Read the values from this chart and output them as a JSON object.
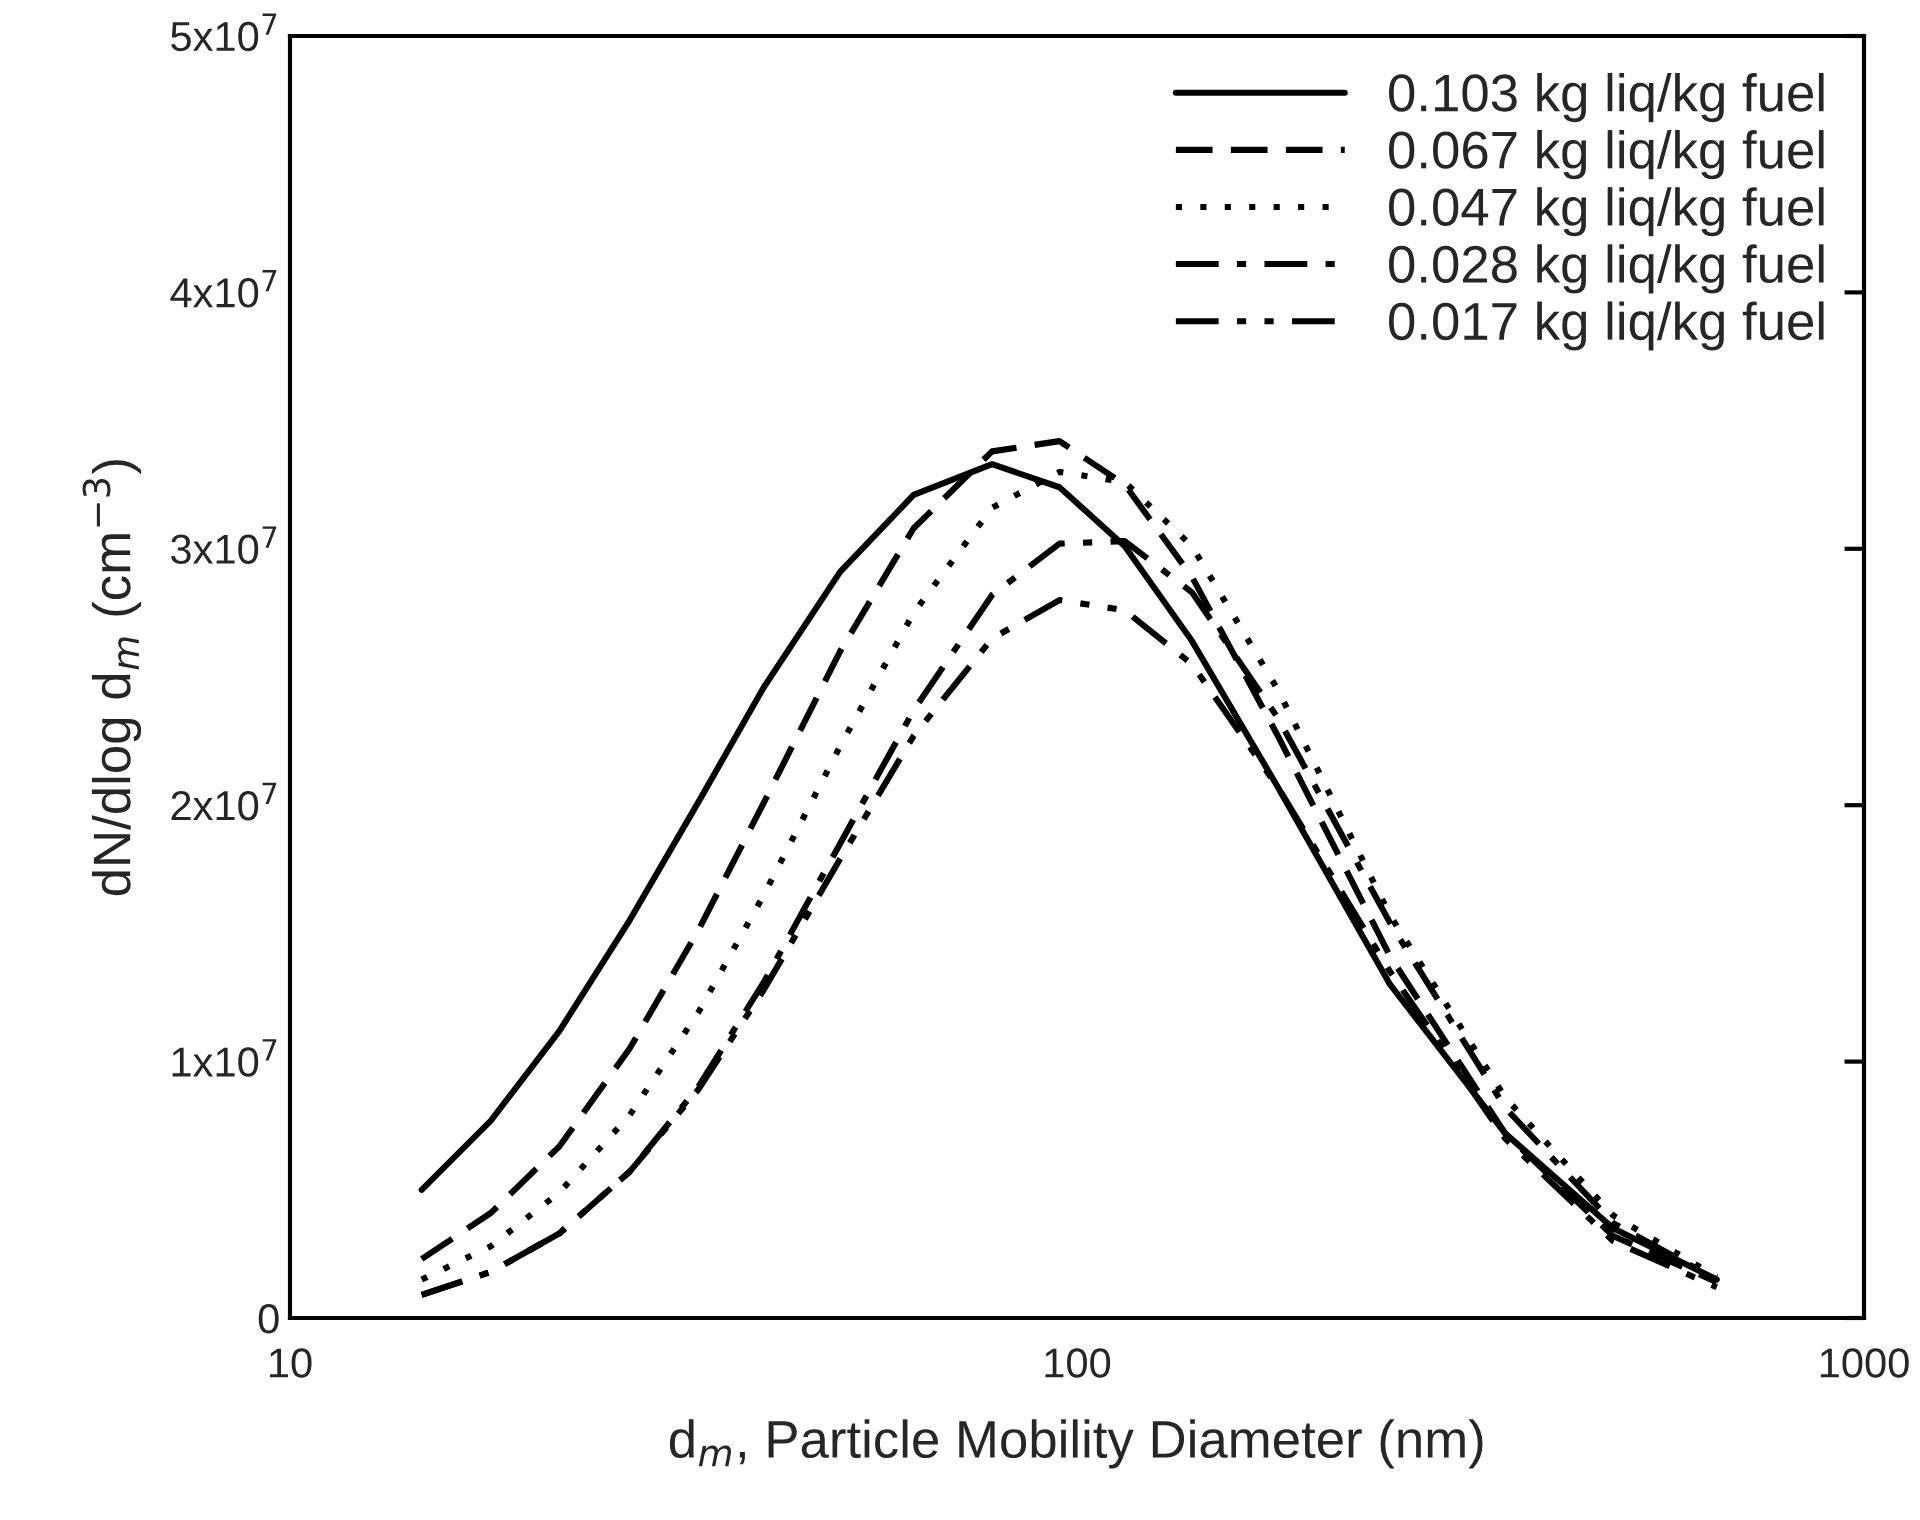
{
  "chart_data": {
    "type": "line",
    "xlabel": "d$_{m}$, Particle Mobility Diameter (nm)",
    "ylabel": "dN/dlog d$_{m}$ (cm$^{−3}$)",
    "x": [
      14.7,
      18,
      22,
      27,
      33,
      40,
      50,
      62,
      78,
      95,
      115,
      140,
      180,
      250,
      350,
      480,
      650
    ],
    "series": [
      {
        "name": "0.103 kg liq/kg fuel",
        "color": "#000000",
        "line_style": "solid",
        "values": [
          5000000.0,
          7700000.0,
          11200000.0,
          15500000.0,
          20100000.0,
          24600000.0,
          29100000.0,
          32100000.0,
          33300000.0,
          32400000.0,
          30100000.0,
          26400000.0,
          20700000.0,
          13000000.0,
          7200000.0,
          3500000.0,
          1500000.0
        ]
      },
      {
        "name": "0.067 kg liq/kg fuel",
        "color": "#000000",
        "line_style": "dashed",
        "values": [
          2300000.0,
          4100000.0,
          6700000.0,
          10500000.0,
          15100000.0,
          20100000.0,
          26000000.0,
          30800000.0,
          33800000.0,
          34200000.0,
          32500000.0,
          28900000.0,
          22700000.0,
          14100000.0,
          7200000.0,
          3200000.0,
          1400000.0
        ]
      },
      {
        "name": "0.047 kg liq/kg fuel",
        "color": "#000000",
        "line_style": "dotted",
        "values": [
          1500000.0,
          2800000.0,
          4900000.0,
          7900000.0,
          11900000.0,
          16500000.0,
          22300000.0,
          27500000.0,
          31600000.0,
          33000000.0,
          32600000.0,
          30100000.0,
          24500000.0,
          15700000.0,
          8600000.0,
          4000000.0,
          1600000.0
        ]
      },
      {
        "name": "0.028 kg liq/kg fuel",
        "color": "#000000",
        "line_style": "dashdot",
        "values": [
          900000.0,
          1800000.0,
          3300000.0,
          5700000.0,
          9000000.0,
          13100000.0,
          18500000.0,
          23700000.0,
          28200000.0,
          30200000.0,
          30300000.0,
          28300000.0,
          23400000.0,
          15400000.0,
          8200000.0,
          3700000.0,
          1500000.0
        ]
      },
      {
        "name": "0.017 kg liq/kg fuel",
        "color": "#000000",
        "line_style": "dashdotdot",
        "values": [
          900000.0,
          1800000.0,
          3300000.0,
          5700000.0,
          8900000.0,
          12800000.0,
          17900000.0,
          22700000.0,
          26500000.0,
          28000000.0,
          27600000.0,
          25500000.0,
          20700000.0,
          13500000.0,
          7000000.0,
          3000000.0,
          1200000.0
        ]
      }
    ],
    "log": "x",
    "xlim": [
      10,
      1000
    ],
    "xticks": [
      10,
      100,
      1000
    ],
    "ylim": [
      0,
      50000000.0
    ],
    "yticks": [
      0,
      {
        "value": 10000000.0,
        "label": "1x10$^{7}$"
      },
      {
        "value": 20000000.0,
        "label": "2x10$^{7}$"
      },
      {
        "value": 30000000.0,
        "label": "3x10$^{7}$"
      },
      {
        "value": 40000000.0,
        "label": "4x10$^{7}$"
      },
      {
        "value": 50000000.0,
        "label": "5x10$^{7}$"
      }
    ],
    "grid": false,
    "legend": "top right"
  }
}
